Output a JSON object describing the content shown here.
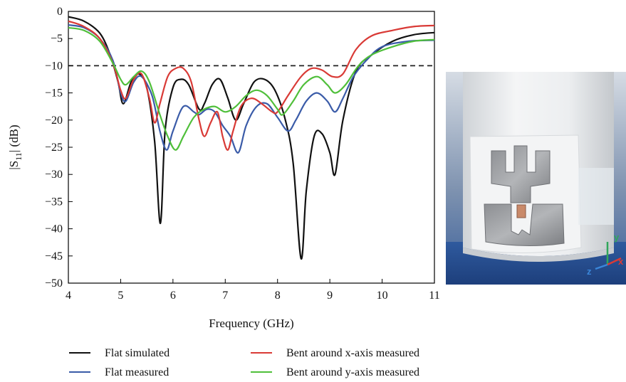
{
  "chart_data": {
    "type": "line",
    "xlabel": "Frequency (GHz)",
    "ylabel": "|S11| (dB)",
    "ylabel_main": "|S",
    "ylabel_sub": "11",
    "ylabel_rest": "| (dB)",
    "xlim": [
      4,
      11
    ],
    "ylim": [
      -50,
      0
    ],
    "x_ticks": [
      4,
      5,
      6,
      7,
      8,
      9,
      10,
      11
    ],
    "y_ticks": [
      0,
      -5,
      -10,
      -15,
      -20,
      -25,
      -30,
      -35,
      -40,
      -45,
      -50
    ],
    "reference_line": {
      "y": -10,
      "style": "dashed",
      "color": "#222222"
    },
    "grid": false,
    "legend_position": "bottom",
    "series": [
      {
        "name": "Flat simulated",
        "color": "#111111",
        "points": [
          [
            4.0,
            -1.0
          ],
          [
            4.3,
            -1.8
          ],
          [
            4.6,
            -4.0
          ],
          [
            4.8,
            -8.0
          ],
          [
            4.95,
            -13.0
          ],
          [
            5.05,
            -17.0
          ],
          [
            5.2,
            -13.0
          ],
          [
            5.35,
            -11.5
          ],
          [
            5.5,
            -14.0
          ],
          [
            5.65,
            -24.0
          ],
          [
            5.76,
            -39.0
          ],
          [
            5.85,
            -22.0
          ],
          [
            6.0,
            -14.0
          ],
          [
            6.15,
            -12.5
          ],
          [
            6.3,
            -13.5
          ],
          [
            6.5,
            -18.0
          ],
          [
            6.6,
            -17.0
          ],
          [
            6.75,
            -13.5
          ],
          [
            6.9,
            -12.5
          ],
          [
            7.05,
            -16.0
          ],
          [
            7.2,
            -20.0
          ],
          [
            7.35,
            -17.0
          ],
          [
            7.55,
            -13.0
          ],
          [
            7.75,
            -12.5
          ],
          [
            7.95,
            -14.5
          ],
          [
            8.15,
            -20.0
          ],
          [
            8.3,
            -28.0
          ],
          [
            8.45,
            -45.5
          ],
          [
            8.55,
            -33.0
          ],
          [
            8.7,
            -23.0
          ],
          [
            8.85,
            -22.5
          ],
          [
            9.0,
            -26.0
          ],
          [
            9.1,
            -30.0
          ],
          [
            9.25,
            -20.0
          ],
          [
            9.5,
            -11.0
          ],
          [
            9.8,
            -8.0
          ],
          [
            10.2,
            -5.5
          ],
          [
            10.6,
            -4.3
          ],
          [
            11.0,
            -3.9
          ]
        ]
      },
      {
        "name": "Flat measured",
        "color": "#3a5ba8",
        "points": [
          [
            4.0,
            -2.5
          ],
          [
            4.3,
            -3.0
          ],
          [
            4.6,
            -5.0
          ],
          [
            4.85,
            -9.0
          ],
          [
            5.0,
            -15.0
          ],
          [
            5.1,
            -16.5
          ],
          [
            5.25,
            -13.0
          ],
          [
            5.4,
            -12.0
          ],
          [
            5.6,
            -15.5
          ],
          [
            5.75,
            -22.0
          ],
          [
            5.88,
            -25.5
          ],
          [
            6.0,
            -22.0
          ],
          [
            6.2,
            -17.5
          ],
          [
            6.4,
            -18.5
          ],
          [
            6.5,
            -19.0
          ],
          [
            6.65,
            -18.0
          ],
          [
            6.8,
            -18.5
          ],
          [
            6.95,
            -21.0
          ],
          [
            7.1,
            -23.0
          ],
          [
            7.25,
            -26.0
          ],
          [
            7.4,
            -21.0
          ],
          [
            7.6,
            -17.5
          ],
          [
            7.8,
            -17.0
          ],
          [
            8.0,
            -19.5
          ],
          [
            8.2,
            -22.0
          ],
          [
            8.35,
            -20.0
          ],
          [
            8.55,
            -16.5
          ],
          [
            8.75,
            -15.0
          ],
          [
            8.95,
            -16.5
          ],
          [
            9.1,
            -18.5
          ],
          [
            9.25,
            -16.0
          ],
          [
            9.45,
            -12.0
          ],
          [
            9.7,
            -9.0
          ],
          [
            10.0,
            -6.5
          ],
          [
            10.5,
            -5.5
          ],
          [
            11.0,
            -5.3
          ]
        ]
      },
      {
        "name": "Bent around x-axis measured",
        "color": "#d93a36",
        "points": [
          [
            4.0,
            -1.8
          ],
          [
            4.3,
            -2.8
          ],
          [
            4.6,
            -5.0
          ],
          [
            4.85,
            -9.5
          ],
          [
            5.0,
            -14.5
          ],
          [
            5.1,
            -16.0
          ],
          [
            5.25,
            -12.5
          ],
          [
            5.4,
            -11.5
          ],
          [
            5.55,
            -16.0
          ],
          [
            5.65,
            -20.5
          ],
          [
            5.75,
            -17.0
          ],
          [
            5.9,
            -12.0
          ],
          [
            6.05,
            -10.5
          ],
          [
            6.2,
            -10.5
          ],
          [
            6.35,
            -13.0
          ],
          [
            6.5,
            -20.0
          ],
          [
            6.6,
            -23.0
          ],
          [
            6.72,
            -20.5
          ],
          [
            6.85,
            -18.5
          ],
          [
            6.95,
            -23.0
          ],
          [
            7.05,
            -25.5
          ],
          [
            7.15,
            -22.0
          ],
          [
            7.3,
            -17.5
          ],
          [
            7.5,
            -16.0
          ],
          [
            7.7,
            -17.0
          ],
          [
            7.9,
            -18.5
          ],
          [
            8.0,
            -18.5
          ],
          [
            8.2,
            -15.5
          ],
          [
            8.45,
            -12.0
          ],
          [
            8.65,
            -10.5
          ],
          [
            8.85,
            -10.8
          ],
          [
            9.05,
            -12.0
          ],
          [
            9.25,
            -11.5
          ],
          [
            9.5,
            -7.0
          ],
          [
            9.8,
            -4.5
          ],
          [
            10.2,
            -3.5
          ],
          [
            10.6,
            -2.8
          ],
          [
            11.0,
            -2.6
          ]
        ]
      },
      {
        "name": "Bent around y-axis measured",
        "color": "#4fbf3a",
        "points": [
          [
            4.0,
            -3.0
          ],
          [
            4.3,
            -3.5
          ],
          [
            4.6,
            -5.5
          ],
          [
            4.85,
            -9.5
          ],
          [
            5.0,
            -12.5
          ],
          [
            5.1,
            -13.5
          ],
          [
            5.25,
            -12.0
          ],
          [
            5.4,
            -11.0
          ],
          [
            5.55,
            -13.0
          ],
          [
            5.75,
            -19.0
          ],
          [
            5.9,
            -23.0
          ],
          [
            6.05,
            -25.5
          ],
          [
            6.2,
            -23.0
          ],
          [
            6.4,
            -19.5
          ],
          [
            6.6,
            -18.0
          ],
          [
            6.8,
            -17.5
          ],
          [
            7.0,
            -18.5
          ],
          [
            7.2,
            -17.5
          ],
          [
            7.4,
            -15.5
          ],
          [
            7.6,
            -14.5
          ],
          [
            7.8,
            -15.5
          ],
          [
            8.0,
            -18.0
          ],
          [
            8.1,
            -19.0
          ],
          [
            8.3,
            -16.5
          ],
          [
            8.5,
            -13.5
          ],
          [
            8.75,
            -12.0
          ],
          [
            8.95,
            -13.5
          ],
          [
            9.1,
            -15.0
          ],
          [
            9.3,
            -13.5
          ],
          [
            9.55,
            -10.0
          ],
          [
            9.8,
            -8.0
          ],
          [
            10.2,
            -6.5
          ],
          [
            10.6,
            -5.5
          ],
          [
            11.0,
            -5.2
          ]
        ]
      }
    ]
  },
  "photo": {
    "axis_labels": {
      "y": "y",
      "z": "z",
      "x": "x"
    },
    "axis_colors": {
      "y": "#2fa65a",
      "z": "#3a86d9",
      "x": "#d93a36"
    }
  }
}
